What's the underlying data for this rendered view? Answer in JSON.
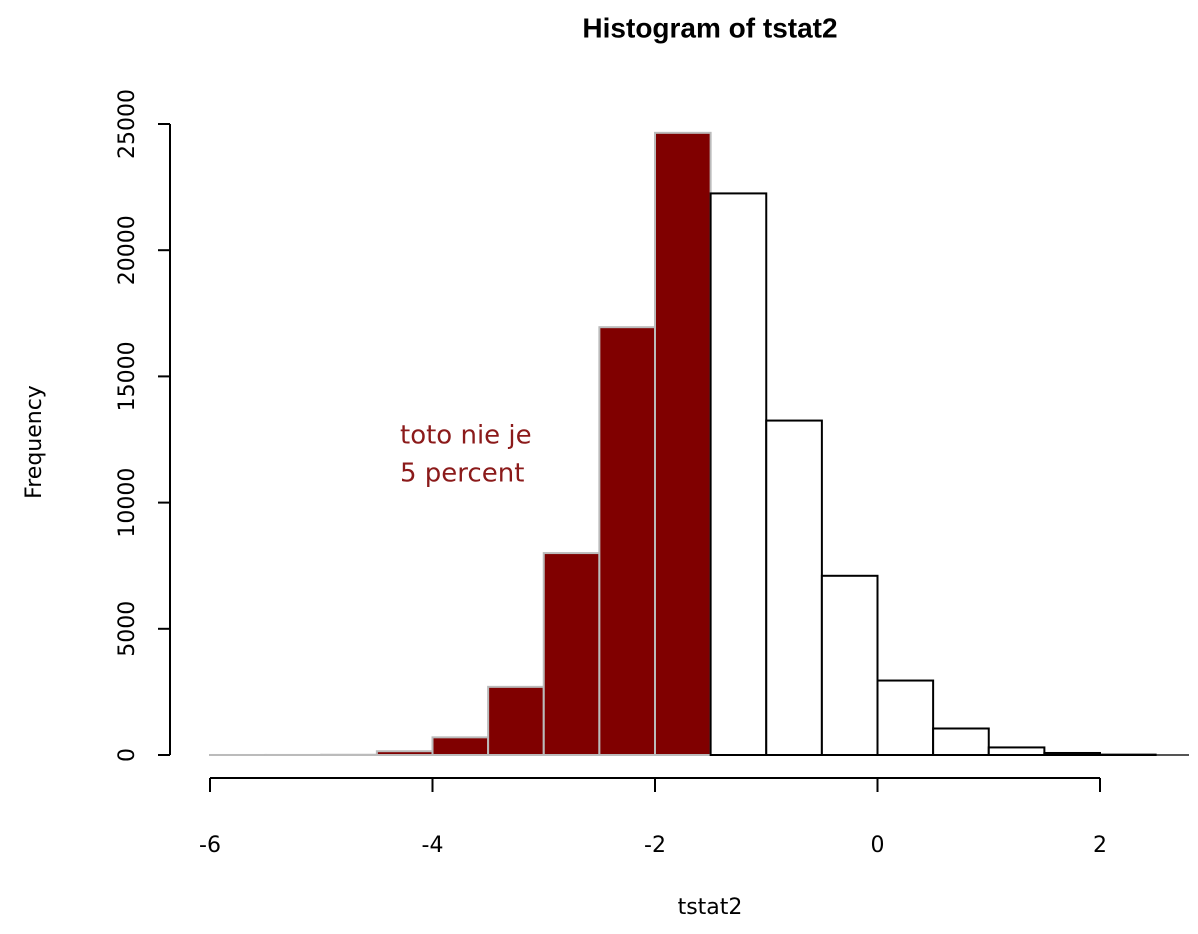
{
  "chart_data": {
    "type": "histogram",
    "title": "Histogram of tstat2",
    "x_label": "tstat2",
    "y_label": "Frequency",
    "bins": [
      -6,
      -5.5,
      -5,
      -4.5,
      -4,
      -3.5,
      -3,
      -2.5,
      -2,
      -1.5,
      -1,
      -0.5,
      0,
      0.5,
      1,
      1.5,
      2,
      2.5
    ],
    "values": [
      1,
      2,
      10,
      150,
      700,
      2700,
      8000,
      16950,
      24650,
      22250,
      13250,
      7100,
      2950,
      1050,
      300,
      80,
      15
    ],
    "colors": [
      "#800000",
      "#800000",
      "#800000",
      "#800000",
      "#800000",
      "#800000",
      "#800000",
      "#800000",
      "#800000",
      "#ffffff",
      "#ffffff",
      "#ffffff",
      "#ffffff",
      "#ffffff",
      "#ffffff",
      "#ffffff",
      "#ffffff"
    ],
    "xlim": [
      -6,
      2.8
    ],
    "xticks": [
      -6,
      -4,
      -2,
      0,
      2
    ],
    "ylim": [
      0,
      25000
    ],
    "yticks": [
      0,
      5000,
      10000,
      15000,
      20000,
      25000
    ],
    "annotation": [
      "toto nie je",
      "5 percent"
    ]
  }
}
